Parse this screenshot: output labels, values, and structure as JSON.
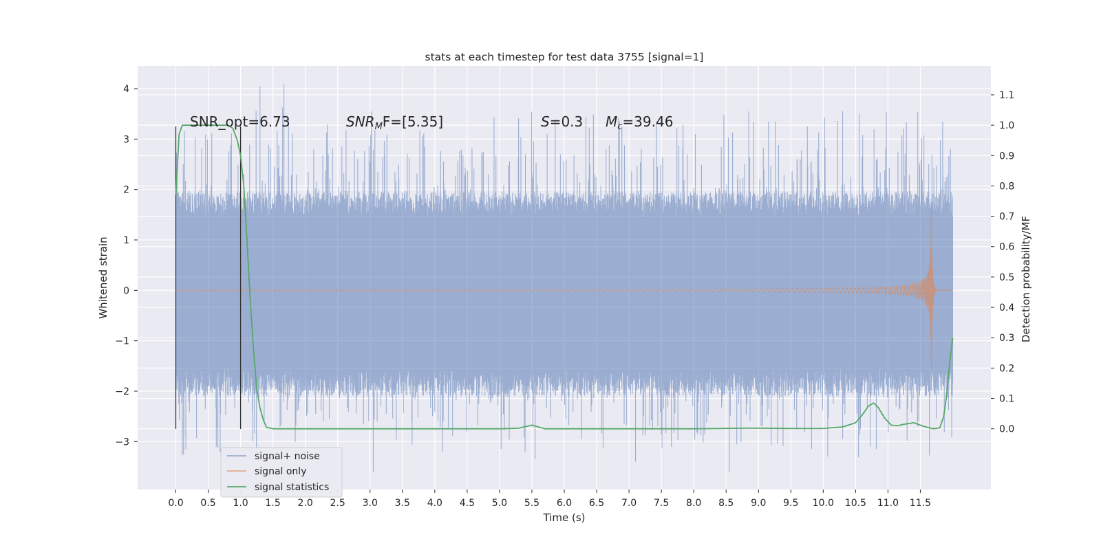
{
  "chart_data": {
    "type": "line",
    "title": "stats at each timestep for test data 3755 [signal=1]",
    "xlabel": "Time (s)",
    "ylabel_left": "Whitened strain",
    "ylabel_right": "Detection probability/MF",
    "xlim": [
      -0.59,
      12.59
    ],
    "ylim_left": [
      -3.95,
      4.45
    ],
    "ylim_right": [
      -0.2,
      1.195
    ],
    "x_ticks": [
      "0.0",
      "0.5",
      "1.0",
      "1.5",
      "2.0",
      "2.5",
      "3.0",
      "3.5",
      "4.0",
      "4.5",
      "5.0",
      "5.5",
      "6.0",
      "6.5",
      "7.0",
      "7.5",
      "8.0",
      "8.5",
      "9.0",
      "9.5",
      "10.0",
      "10.5",
      "11.0",
      "11.5"
    ],
    "y_ticks_left": [
      "4",
      "3",
      "2",
      "1",
      "0",
      "−1",
      "−2",
      "−3"
    ],
    "y_ticks_right": [
      "1.1",
      "1.0",
      "0.9",
      "0.8",
      "0.7",
      "0.6",
      "0.5",
      "0.4",
      "0.3",
      "0.2",
      "0.1",
      "0.0"
    ],
    "grid": true,
    "legend_position": "lower-left",
    "annotations": {
      "snr_opt": "SNR_opt=6.73",
      "snr_mf_base": "SNR",
      "snr_mf_sub": "M",
      "snr_mf_rest": "F=[5.35]",
      "s_var": "S",
      "s_rest": "=0.3",
      "mc_var": "M",
      "mc_sub": "c",
      "mc_rest": "=39.46"
    },
    "vlines": [
      {
        "x": 0.0,
        "y": [
          -2.75,
          3.25
        ]
      },
      {
        "x": 1.0,
        "y": [
          -2.75,
          3.25
        ]
      }
    ],
    "series": [
      {
        "name": "signal+ noise",
        "color": "#4c72b0",
        "opacity": 0.5,
        "axis": "left",
        "x_range": [
          0.0,
          12.0
        ],
        "band_low": -1.55,
        "band_high": 1.45,
        "peak_max": 4.1,
        "trough_min": -3.6,
        "example_peaks": [
          {
            "x": 1.3,
            "y": 4.05
          },
          {
            "x": 1.67,
            "y": 4.1
          },
          {
            "x": 3.02,
            "y": 3.55
          },
          {
            "x": 8.85,
            "y": 3.55
          },
          {
            "x": 10.3,
            "y": 3.55
          },
          {
            "x": 6.85,
            "y": 3.35
          },
          {
            "x": 3.05,
            "y": -3.6
          },
          {
            "x": 8.55,
            "y": -3.6
          },
          {
            "x": 7.1,
            "y": -3.4
          },
          {
            "x": 0.12,
            "y": -3.25
          },
          {
            "x": 4.12,
            "y": -3.2
          },
          {
            "x": 5.55,
            "y": -3.35
          },
          {
            "x": 9.82,
            "y": -3.15
          },
          {
            "x": 10.82,
            "y": -3.15
          }
        ]
      },
      {
        "name": "signal only",
        "color": "#dd8452",
        "opacity": 0.6,
        "axis": "left",
        "x_range": [
          0.0,
          12.0
        ],
        "chirp_peak_time": 11.67,
        "chirp_peak_amp": 1.65,
        "chirp_min": -1.55
      },
      {
        "name": "signal statistics",
        "color": "#55a868",
        "opacity": 1,
        "axis": "right",
        "x": [
          0.0,
          0.05,
          0.1,
          0.2,
          0.3,
          0.4,
          0.5,
          0.6,
          0.7,
          0.8,
          0.88,
          0.95,
          1.0,
          1.05,
          1.1,
          1.15,
          1.2,
          1.25,
          1.3,
          1.35,
          1.4,
          1.5,
          1.6,
          2.0,
          3.0,
          4.0,
          5.0,
          5.3,
          5.4,
          5.5,
          5.6,
          5.7,
          6.0,
          7.0,
          8.0,
          8.8,
          9.0,
          9.5,
          10.0,
          10.3,
          10.5,
          10.6,
          10.7,
          10.78,
          10.85,
          10.95,
          11.05,
          11.15,
          11.25,
          11.4,
          11.55,
          11.7,
          11.8,
          11.86,
          11.9,
          11.95,
          12.0
        ],
        "y": [
          0.77,
          0.97,
          1.0,
          1.0,
          1.0,
          1.0,
          1.0,
          1.0,
          1.0,
          1.0,
          0.99,
          0.95,
          0.9,
          0.8,
          0.62,
          0.42,
          0.26,
          0.13,
          0.07,
          0.03,
          0.005,
          0.0,
          0.0,
          0.0,
          0.0,
          0.0,
          0.0,
          0.002,
          0.007,
          0.012,
          0.006,
          0.0,
          0.0,
          0.0,
          0.0,
          0.002,
          0.002,
          0.001,
          0.001,
          0.006,
          0.02,
          0.045,
          0.075,
          0.085,
          0.07,
          0.035,
          0.012,
          0.01,
          0.015,
          0.02,
          0.008,
          0.0,
          0.003,
          0.04,
          0.1,
          0.21,
          0.3
        ]
      }
    ]
  }
}
